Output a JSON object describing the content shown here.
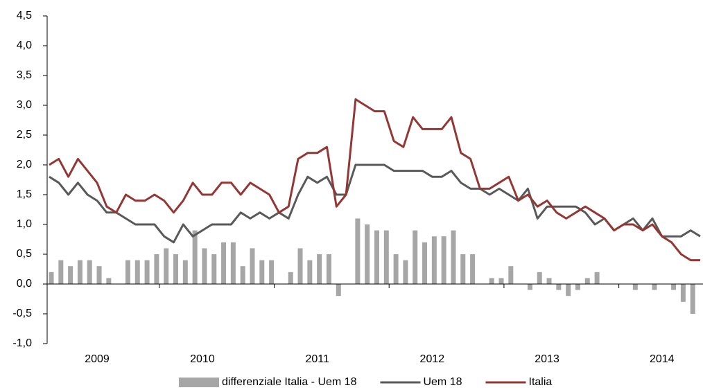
{
  "chart_data": {
    "type": "combo",
    "categories": [
      null,
      null,
      null,
      null,
      null,
      "2009",
      null,
      null,
      null,
      null,
      null,
      null,
      null,
      null,
      null,
      null,
      "2010",
      null,
      null,
      null,
      null,
      null,
      null,
      null,
      null,
      null,
      null,
      null,
      "2011",
      null,
      null,
      null,
      null,
      null,
      null,
      null,
      null,
      null,
      null,
      null,
      "2012",
      null,
      null,
      null,
      null,
      null,
      null,
      null,
      null,
      null,
      null,
      null,
      "2013",
      null,
      null,
      null,
      null,
      null,
      null,
      null,
      null,
      null,
      null,
      null,
      "2014",
      null,
      null,
      null,
      null
    ],
    "series": [
      {
        "name": "differenziale Italia - Uem 18",
        "type": "bar",
        "color": "#a6a6a6",
        "values": [
          0.2,
          0.4,
          0.3,
          0.4,
          0.4,
          0.3,
          0.1,
          0,
          0.4,
          0.4,
          0.4,
          0.5,
          0.6,
          0.5,
          0.4,
          0.9,
          0.6,
          0.5,
          0.7,
          0.7,
          0.3,
          0.6,
          0.4,
          0.4,
          0,
          0.2,
          0.6,
          0.4,
          0.5,
          0.5,
          -0.2,
          0,
          1.1,
          1.0,
          0.9,
          0.9,
          0.5,
          0.4,
          0.9,
          0.7,
          0.8,
          0.8,
          0.9,
          0.5,
          0.5,
          0,
          0.1,
          0.1,
          0.3,
          0,
          -0.1,
          0.2,
          0.1,
          -0.1,
          -0.2,
          -0.1,
          0.1,
          0.2,
          0,
          0,
          0,
          -0.1,
          0,
          -0.1,
          0,
          -0.1,
          -0.3,
          -0.5,
          0
        ]
      },
      {
        "name": "Uem 18",
        "type": "line",
        "color": "#595959",
        "values": [
          1.8,
          1.7,
          1.5,
          1.7,
          1.5,
          1.4,
          1.2,
          1.2,
          1.1,
          1.0,
          1.0,
          1.0,
          0.8,
          0.7,
          1.0,
          0.8,
          0.9,
          1.0,
          1.0,
          1.0,
          1.2,
          1.1,
          1.2,
          1.1,
          1.2,
          1.1,
          1.5,
          1.8,
          1.7,
          1.8,
          1.5,
          1.5,
          2.0,
          2.0,
          2.0,
          2.0,
          1.9,
          1.9,
          1.9,
          1.9,
          1.8,
          1.8,
          1.9,
          1.7,
          1.6,
          1.6,
          1.5,
          1.6,
          1.5,
          1.4,
          1.6,
          1.1,
          1.3,
          1.3,
          1.3,
          1.3,
          1.2,
          1.0,
          1.1,
          0.9,
          1.0,
          1.1,
          0.9,
          1.1,
          0.8,
          0.8,
          0.8,
          0.9,
          0.8
        ]
      },
      {
        "name": "Italia",
        "type": "line",
        "color": "#943634",
        "values": [
          2.0,
          2.1,
          1.8,
          2.1,
          1.9,
          1.7,
          1.3,
          1.2,
          1.5,
          1.4,
          1.4,
          1.5,
          1.4,
          1.2,
          1.4,
          1.7,
          1.5,
          1.5,
          1.7,
          1.7,
          1.5,
          1.7,
          1.6,
          1.5,
          1.2,
          1.3,
          2.1,
          2.2,
          2.2,
          2.3,
          1.3,
          1.5,
          3.1,
          3.0,
          2.9,
          2.9,
          2.4,
          2.3,
          2.8,
          2.6,
          2.6,
          2.6,
          2.8,
          2.2,
          2.1,
          1.6,
          1.6,
          1.7,
          1.8,
          1.4,
          1.5,
          1.3,
          1.4,
          1.2,
          1.1,
          1.2,
          1.3,
          1.2,
          1.1,
          0.9,
          1.0,
          1.0,
          0.9,
          1.0,
          0.8,
          0.7,
          0.5,
          0.4,
          0.4
        ]
      }
    ],
    "ylim": [
      -1.0,
      4.5
    ],
    "yticks": [
      {
        "value": -1.0,
        "label": "-1,0"
      },
      {
        "value": -0.5,
        "label": "-0,5"
      },
      {
        "value": 0,
        "label": "0,0"
      },
      {
        "value": 0.5,
        "label": "0,5"
      },
      {
        "value": 1.0,
        "label": "1,0"
      },
      {
        "value": 1.5,
        "label": "1,5"
      },
      {
        "value": 2.0,
        "label": "2,0"
      },
      {
        "value": 2.5,
        "label": "2,5"
      },
      {
        "value": 3.0,
        "label": "3,0"
      },
      {
        "value": 3.5,
        "label": "3,5"
      },
      {
        "value": 4.0,
        "label": "4,0"
      },
      {
        "value": 4.5,
        "label": "4,5"
      }
    ],
    "grid": false,
    "legend": "bottom"
  }
}
